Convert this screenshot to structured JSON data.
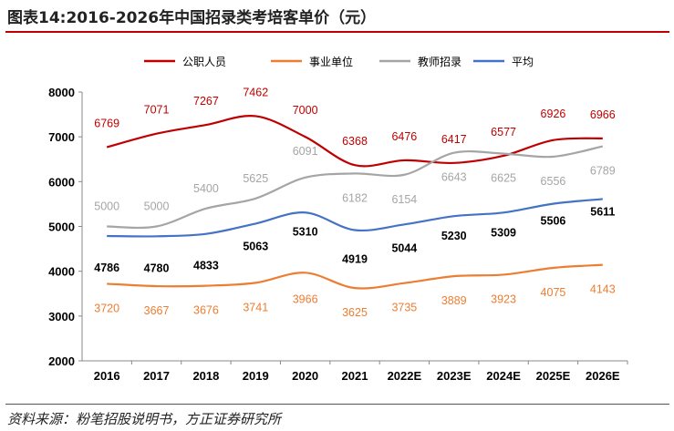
{
  "title": "图表14:2016-2026年中国招录类考培客单价（元）",
  "source": "资料来源：粉笔招股说明书，方正证券研究所",
  "chart_data": {
    "type": "line",
    "title": "",
    "xlabel": "",
    "ylabel": "",
    "ylim": [
      2000,
      8000
    ],
    "yticks": [
      2000,
      3000,
      4000,
      5000,
      6000,
      7000,
      8000
    ],
    "grid": false,
    "legend": "top",
    "categories": [
      "2016",
      "2017",
      "2018",
      "2019",
      "2020",
      "2021",
      "2022E",
      "2023E",
      "2024E",
      "2025E",
      "2026E"
    ],
    "series": [
      {
        "name": "公职人员",
        "color": "#c00000",
        "smooth": true,
        "label_bold": false,
        "values": [
          6769,
          7071,
          7267,
          7462,
          7000,
          6368,
          6476,
          6417,
          6577,
          6926,
          6966
        ]
      },
      {
        "name": "事业单位",
        "color": "#ed7d31",
        "smooth": true,
        "label_bold": false,
        "values": [
          3720,
          3667,
          3676,
          3741,
          3966,
          3625,
          3735,
          3889,
          3923,
          4075,
          4143
        ]
      },
      {
        "name": "教师招录",
        "color": "#a5a5a5",
        "smooth": true,
        "label_bold": false,
        "values": [
          5000,
          5000,
          5400,
          5625,
          6091,
          6182,
          6154,
          6643,
          6625,
          6556,
          6789
        ]
      },
      {
        "name": "平均",
        "color": "#4472c4",
        "smooth": true,
        "label_bold": true,
        "label_color": "#000000",
        "values": [
          4786,
          4780,
          4833,
          5063,
          5310,
          4919,
          5044,
          5230,
          5309,
          5506,
          5611
        ]
      }
    ]
  }
}
